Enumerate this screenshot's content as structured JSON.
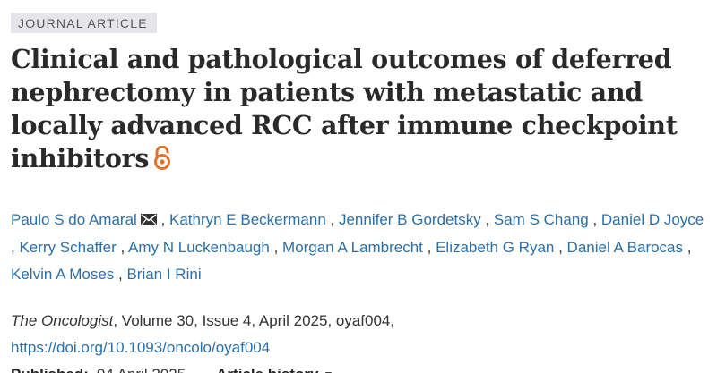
{
  "article_type": "JOURNAL ARTICLE",
  "title": "Clinical and pathological outcomes of deferred nephrectomy in patients with metastatic and locally advanced RCC after immune checkpoint inhibitors",
  "open_access_icon": "open-access-icon",
  "authors": [
    {
      "name": "Paulo S do Amaral",
      "has_mail_icon": true
    },
    {
      "name": "Kathryn E Beckermann"
    },
    {
      "name": "Jennifer B Gordetsky"
    },
    {
      "name": "Sam S Chang"
    },
    {
      "name": "Daniel D Joyce"
    },
    {
      "name": "Kerry Schaffer"
    },
    {
      "name": "Amy N Luckenbaugh"
    },
    {
      "name": "Morgan A Lambrecht"
    },
    {
      "name": "Elizabeth G Ryan"
    },
    {
      "name": "Daniel A Barocas"
    },
    {
      "name": "Kelvin A Moses"
    },
    {
      "name": "Brian I Rini"
    }
  ],
  "author_separator": " , ",
  "citation": {
    "journal": "The Oncologist",
    "details": ", Volume 30, Issue 4, April 2025, oyaf004,",
    "doi": "https://doi.org/10.1093/oncolo/oyaf004"
  },
  "published": {
    "label": "Published:",
    "date": "04 April 2025"
  },
  "article_history": {
    "label": "Article history",
    "caret": "▼"
  },
  "colors": {
    "link": "#2b6fa8",
    "open_access": "#e8712a",
    "badge_bg": "#e6e6ea"
  }
}
